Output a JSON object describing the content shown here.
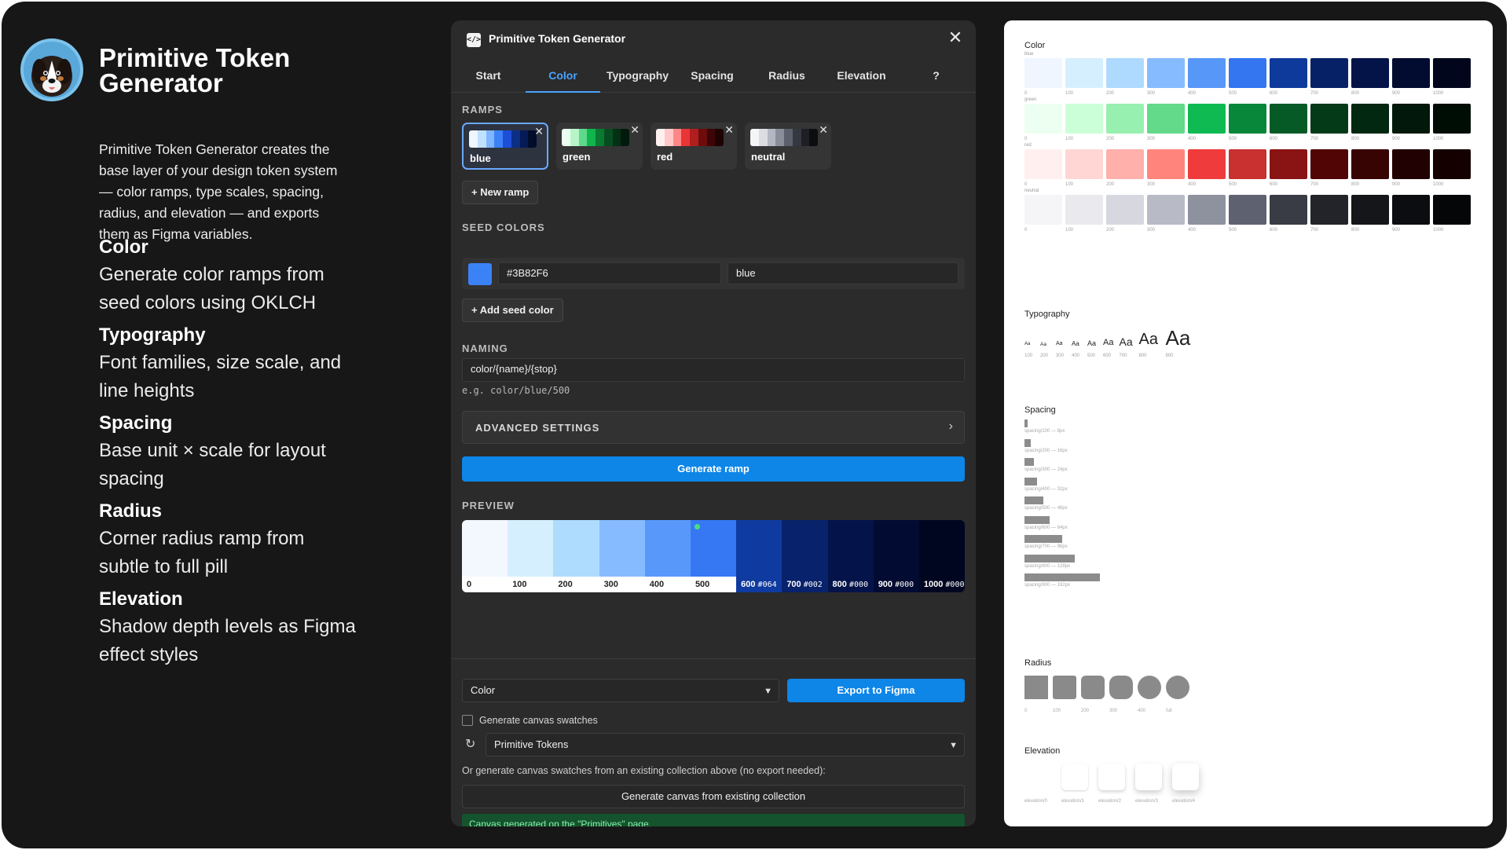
{
  "left": {
    "title": "Primitive Token Generator",
    "intro": "Primitive Token Generator creates the base layer of your design token system — color ramps, type scales, spacing, radius, and elevation — and exports them as Figma variables.",
    "features": [
      {
        "heading": "Color",
        "desc": "Generate color ramps from seed colors using OKLCH"
      },
      {
        "heading": "Typography",
        "desc": "Font families, size scale, and line heights"
      },
      {
        "heading": "Spacing",
        "desc": "Base unit × scale for layout spacing"
      },
      {
        "heading": "Radius",
        "desc": "Corner radius ramp from subtle to full pill"
      },
      {
        "heading": "Elevation",
        "desc": "Shadow depth levels as Figma effect styles"
      }
    ]
  },
  "plugin": {
    "title": "Primitive Token Generator",
    "close": "✕",
    "tabs": [
      "Start",
      "Color",
      "Typography",
      "Spacing",
      "Radius",
      "Elevation",
      "?"
    ],
    "active_tab": "Color",
    "ramps_label": "RAMPS",
    "ramps": [
      {
        "name": "blue",
        "active": true,
        "colors": [
          "#eef6ff",
          "#bfe0ff",
          "#7fb6ff",
          "#3b82f6",
          "#1d4ed8",
          "#0b2f86",
          "#061a55",
          "#020c2b"
        ]
      },
      {
        "name": "green",
        "active": false,
        "colors": [
          "#eafff0",
          "#b7f5c9",
          "#5fd98a",
          "#10b54d",
          "#0a7a33",
          "#074d21",
          "#043014",
          "#021a0b"
        ]
      },
      {
        "name": "red",
        "active": false,
        "colors": [
          "#fff0f0",
          "#ffc9c9",
          "#ff8686",
          "#e83535",
          "#b01e1e",
          "#6e0c0c",
          "#3d0505",
          "#1e0202"
        ]
      },
      {
        "name": "neutral",
        "active": false,
        "colors": [
          "#f5f5f7",
          "#dcdde2",
          "#b4b7c1",
          "#8a8e9a",
          "#5c606b",
          "#353841",
          "#1d1f24",
          "#0c0d10"
        ]
      }
    ],
    "new_ramp": "+ New ramp",
    "seed_label": "SEED COLORS",
    "seed": {
      "color": "#3B82F6",
      "hex": "#3B82F6",
      "name": "blue"
    },
    "add_seed": "+ Add seed color",
    "naming_label": "NAMING",
    "naming_value": "color/{name}/{stop}",
    "naming_example": "e.g. color/blue/500",
    "advanced": "ADVANCED SETTINGS",
    "generate": "Generate ramp",
    "preview_label": "PREVIEW",
    "preview": [
      {
        "stop": "0",
        "hex": "",
        "color": "#f3f8ff",
        "dark": false
      },
      {
        "stop": "100",
        "hex": "",
        "color": "#d6efff",
        "dark": false
      },
      {
        "stop": "200",
        "hex": "",
        "color": "#aedcff",
        "dark": false
      },
      {
        "stop": "300",
        "hex": "",
        "color": "#86bcff",
        "dark": false
      },
      {
        "stop": "400",
        "hex": "",
        "color": "#5898fb",
        "dark": false
      },
      {
        "stop": "500",
        "hex": "",
        "color": "#3678f3",
        "dark": false
      },
      {
        "stop": "600",
        "hex": "#064",
        "color": "#0f3aa0",
        "dark": true
      },
      {
        "stop": "700",
        "hex": "#002",
        "color": "#08226b",
        "dark": true
      },
      {
        "stop": "800",
        "hex": "#000",
        "color": "#04134a",
        "dark": true
      },
      {
        "stop": "900",
        "hex": "#000",
        "color": "#020b31",
        "dark": true
      },
      {
        "stop": "1000",
        "hex": "#000",
        "color": "#010620",
        "dark": true
      }
    ],
    "collection_select": "Color",
    "export": "Export to Figma",
    "swatches_checkbox": "Generate canvas swatches",
    "target_collection": "Primitive Tokens",
    "or_text": "Or generate canvas swatches from an existing collection above (no export needed):",
    "generate_canvas": "Generate canvas from existing collection",
    "status": "Canvas generated on the \"Primitives\" page."
  },
  "canvas": {
    "color_heading": "Color",
    "stops": [
      "0",
      "100",
      "200",
      "300",
      "400",
      "500",
      "600",
      "700",
      "800",
      "900",
      "1000"
    ],
    "ramps": [
      {
        "name": "blue",
        "colors": [
          "#eff6ff",
          "#d6efff",
          "#aedaff",
          "#86bbff",
          "#5797f8",
          "#3476f0",
          "#0e3a9c",
          "#072167",
          "#041449",
          "#020b30",
          "#01061c"
        ]
      },
      {
        "name": "green",
        "colors": [
          "#ecfff0",
          "#cbffd7",
          "#97f0af",
          "#63d98a",
          "#0fba52",
          "#08863a",
          "#055a26",
          "#043a18",
          "#022811",
          "#01180a",
          "#000d05"
        ]
      },
      {
        "name": "red",
        "colors": [
          "#fff0ef",
          "#ffd6d3",
          "#ffb0aa",
          "#ff857c",
          "#ef3b3b",
          "#c93030",
          "#8a1414",
          "#520505",
          "#380303",
          "#210101",
          "#150000"
        ]
      },
      {
        "name": "neutral",
        "colors": [
          "#f5f5f7",
          "#e9e9ee",
          "#d6d7df",
          "#b8bac6",
          "#8e919e",
          "#5e6270",
          "#393c45",
          "#22242a",
          "#15161a",
          "#0c0d10",
          "#050607"
        ]
      }
    ],
    "typography_heading": "Typography",
    "type_sample": "Aa",
    "type_stops": [
      "100",
      "200",
      "300",
      "400",
      "500",
      "600",
      "700",
      "800",
      "900"
    ],
    "spacing_heading": "Spacing",
    "spacing": [
      "spacing/100 — 8px",
      "spacing/200 — 16px",
      "spacing/300 — 24px",
      "spacing/400 — 32px",
      "spacing/500 — 48px",
      "spacing/600 — 64px",
      "spacing/700 — 96px",
      "spacing/800 — 128px",
      "spacing/900 — 192px"
    ],
    "radius_heading": "Radius",
    "radius": [
      "0",
      "100",
      "200",
      "300",
      "400",
      "full"
    ],
    "elevation_heading": "Elevation",
    "elevation": [
      "elevation/0",
      "elevation/1",
      "elevation/2",
      "elevation/3",
      "elevation/4"
    ]
  }
}
